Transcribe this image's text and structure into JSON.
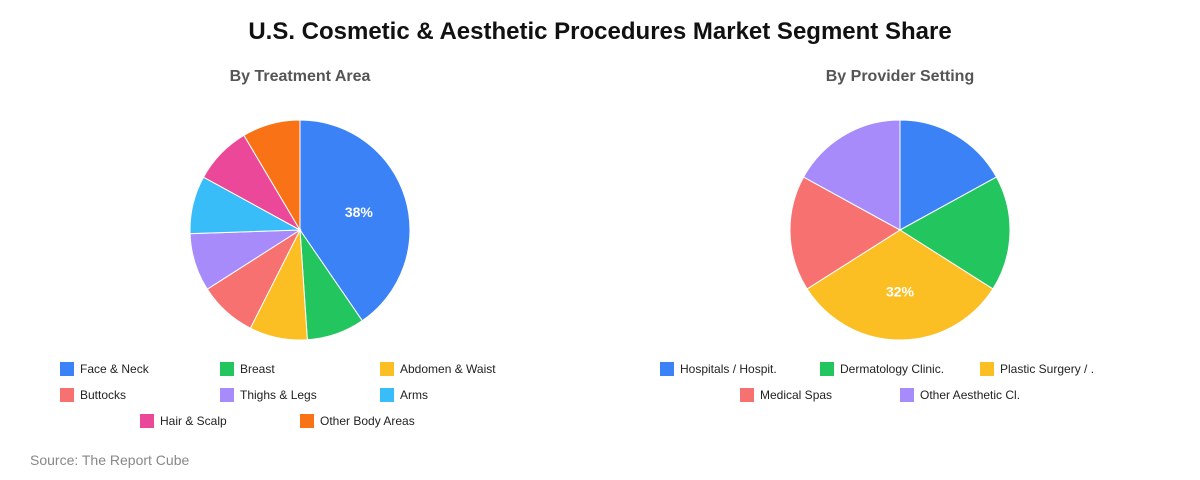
{
  "title": "U.S. Cosmetic & Aesthetic Procedures Market Segment Share",
  "source": "Source: The Report Cube",
  "chart_data": [
    {
      "type": "pie",
      "title": "By Treatment Area",
      "labels": [
        "Face & Neck",
        "Breast",
        "Abdomen & Waist",
        "Buttocks",
        "Thighs & Legs",
        "Arms",
        "Hair & Scalp",
        "Other Body Areas"
      ],
      "values": [
        38,
        8,
        8,
        8,
        8,
        8,
        8,
        8
      ],
      "colors": [
        "#3b82f6",
        "#22c55e",
        "#fbbf24",
        "#f87171",
        "#a78bfa",
        "#38bdf8",
        "#ec4899",
        "#f97316"
      ],
      "data_labels": [
        "38%",
        "",
        "",
        "",
        "",
        "",
        "",
        ""
      ],
      "legend": "bottom"
    },
    {
      "type": "pie",
      "title": "By Provider Setting",
      "labels": [
        "Hospitals / Hospit.",
        "Dermatology Clinic.",
        "Plastic Surgery / .",
        "Medical Spas",
        "Other Aesthetic Cl."
      ],
      "values": [
        17,
        17,
        32,
        17,
        17
      ],
      "colors": [
        "#3b82f6",
        "#22c55e",
        "#fbbf24",
        "#f87171",
        "#a78bfa"
      ],
      "data_labels": [
        "",
        "",
        "32%",
        "",
        ""
      ],
      "legend": "bottom"
    }
  ]
}
